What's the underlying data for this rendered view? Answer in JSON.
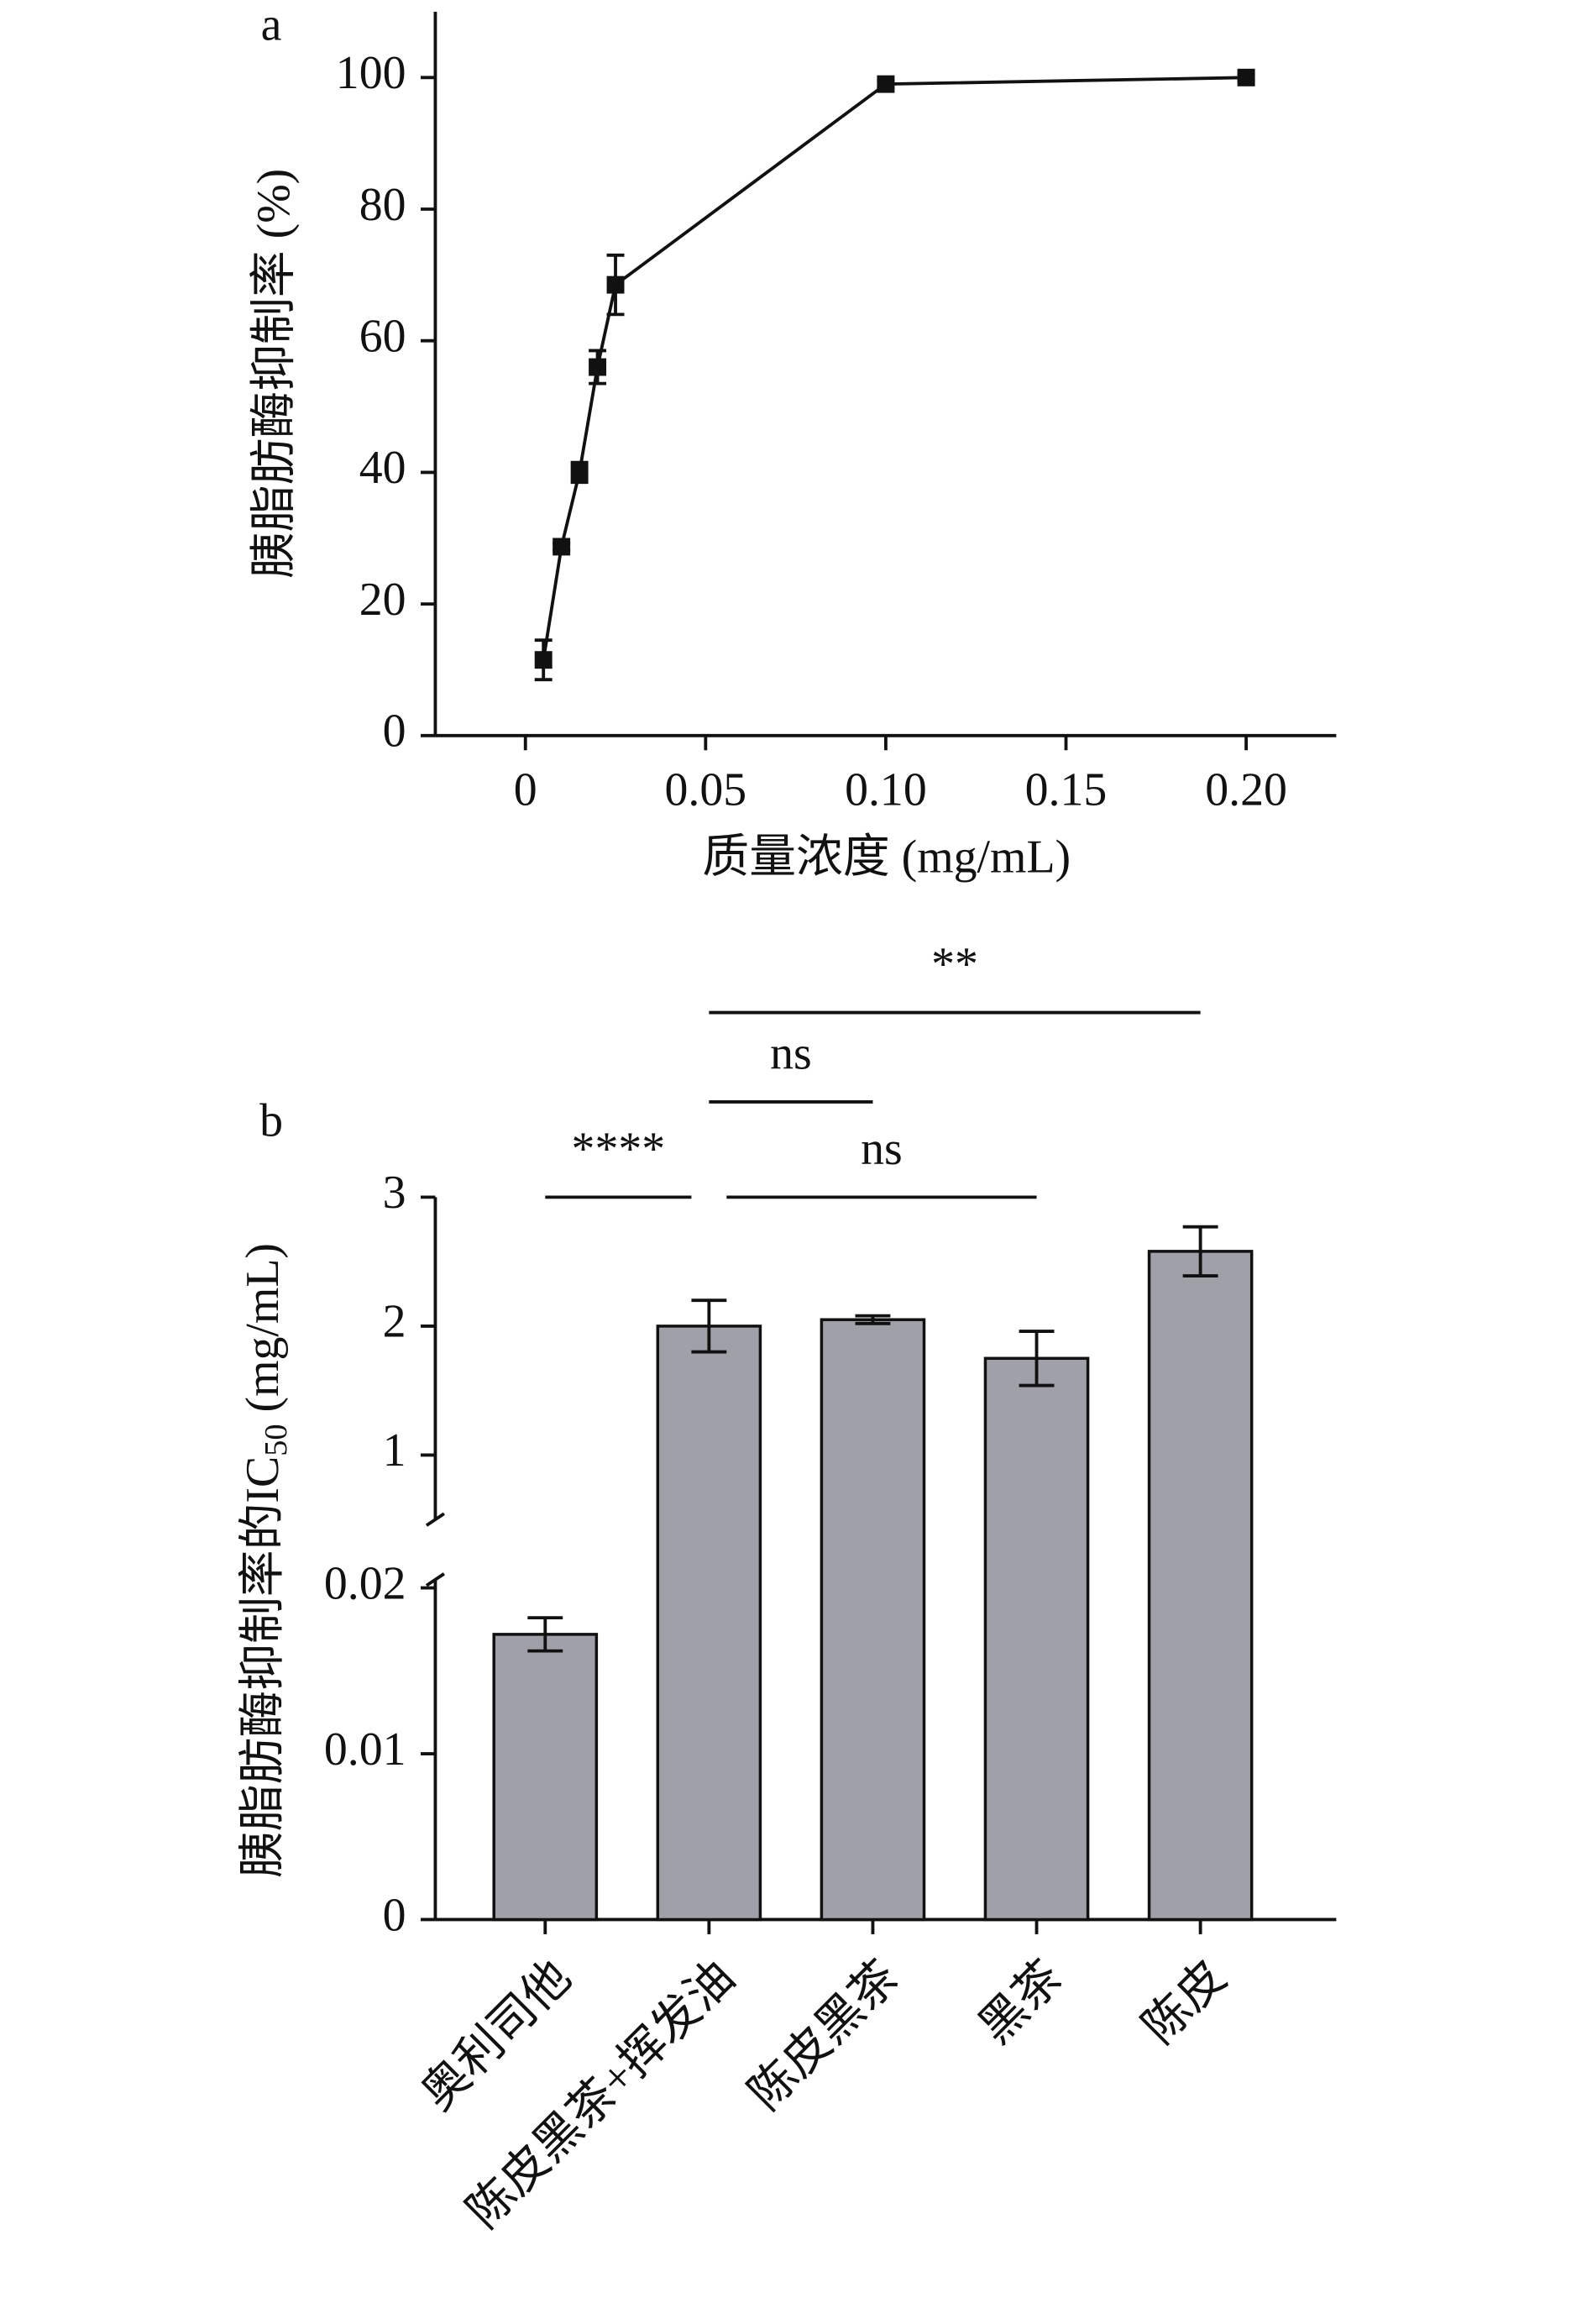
{
  "chart_data": [
    {
      "type": "line",
      "panel_label": "a",
      "x_label": "质量浓度 (mg/mL)",
      "y_label": "胰脂肪酶抑制率 (%)",
      "x": [
        0.005,
        0.01,
        0.015,
        0.02,
        0.025,
        0.1,
        0.2
      ],
      "series": [
        {
          "color": "#111111",
          "values": [
            11.5,
            28.7,
            40,
            56,
            68.5,
            99,
            100
          ],
          "errors": [
            3,
            0.5,
            1.5,
            2.5,
            4.5,
            0.5,
            0.5
          ]
        }
      ],
      "xlim": [
        -0.025,
        0.225
      ],
      "xticks": [
        0,
        0.05,
        {
          "value": 0.1,
          "label": "0.10"
        },
        0.15,
        {
          "value": 0.2,
          "label": "0.20"
        }
      ],
      "ylim": [
        0,
        110
      ],
      "yticks": [
        0,
        20,
        40,
        60,
        80,
        100
      ]
    },
    {
      "type": "bar",
      "panel_label": "b",
      "y_label": [
        "胰脂肪酶抑制率的IC",
        "50",
        " (mg/mL)"
      ],
      "categories": [
        "奥利司他",
        "陈皮黑茶+挥发油",
        "陈皮黑茶",
        "黑茶",
        "陈皮"
      ],
      "values": [
        0.0172,
        2.0,
        2.05,
        1.75,
        2.58
      ],
      "errors": [
        0.001,
        0.2,
        0.03,
        0.21,
        0.19
      ],
      "color": "#a0a0a8",
      "ylim_lower": [
        0,
        0.0205
      ],
      "yticks_lower": [
        0,
        0.01,
        0.02
      ],
      "ylim_upper": [
        0.5,
        3
      ],
      "yticks_upper": [
        1,
        2,
        3
      ],
      "annotations": [
        {
          "text": "****",
          "between": [
            0,
            1
          ]
        },
        {
          "text": "ns",
          "between": [
            1,
            3
          ]
        },
        {
          "text": "ns",
          "between": [
            1,
            2
          ]
        },
        {
          "text": "**",
          "between": [
            1,
            4
          ]
        }
      ]
    }
  ]
}
